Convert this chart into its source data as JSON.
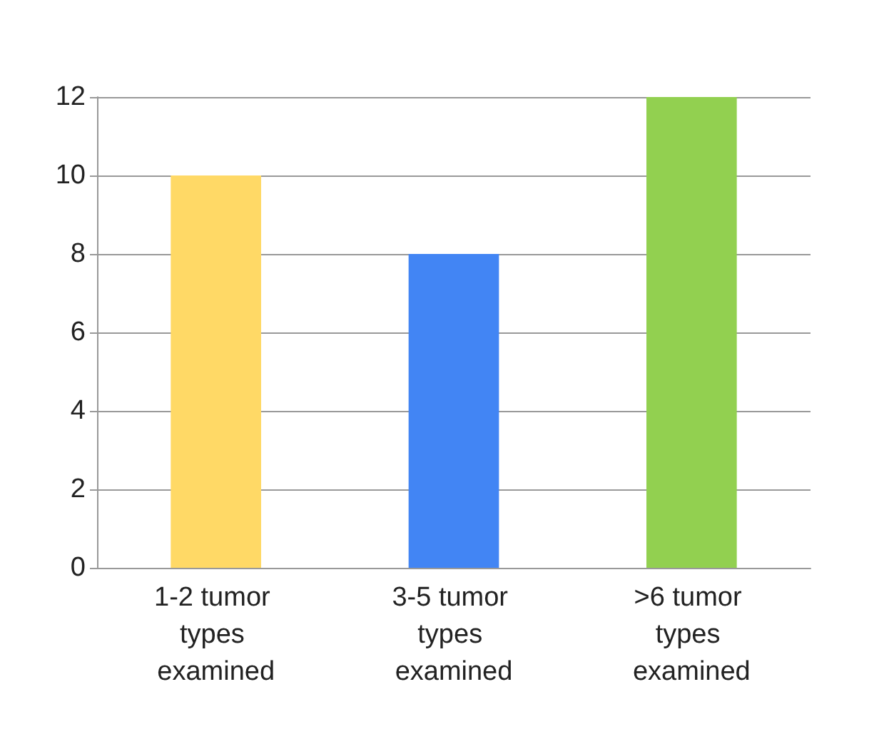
{
  "chart_data": {
    "type": "bar",
    "categories": [
      "1-2 tumor types examined",
      "3-5 tumor types examined",
      ">6 tumor types examined"
    ],
    "values": [
      10,
      8,
      12
    ],
    "colors": [
      "#ffd966",
      "#4285f4",
      "#92d050"
    ],
    "ylim": [
      0,
      12
    ],
    "yticks": [
      0,
      2,
      4,
      6,
      8,
      10,
      12
    ],
    "grid": true
  }
}
